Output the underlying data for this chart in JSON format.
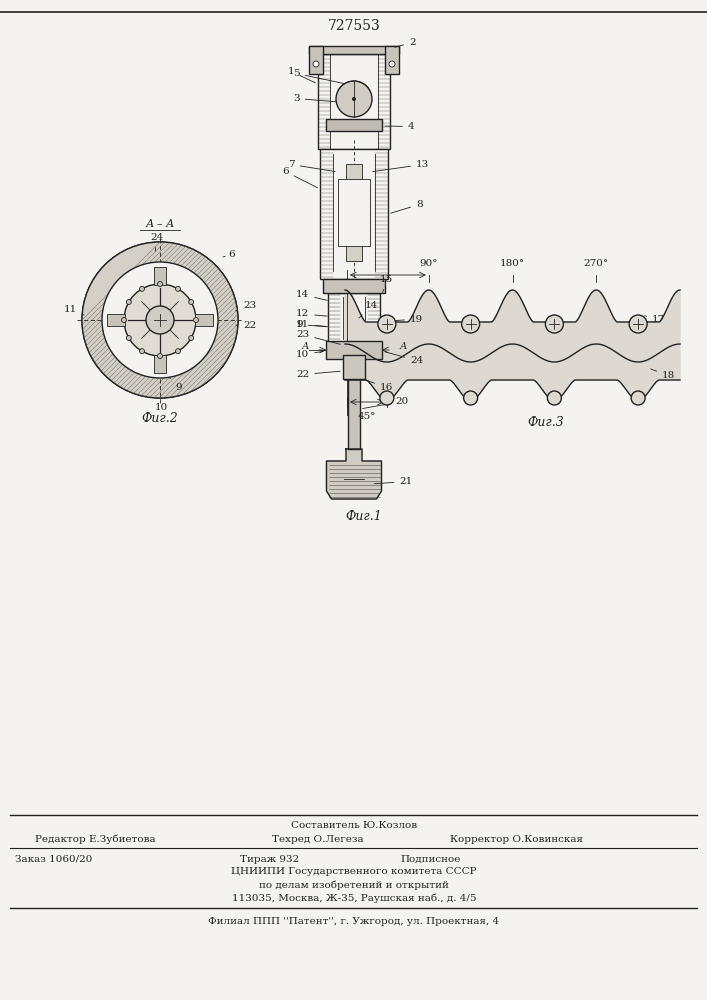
{
  "patent_number": "727553",
  "bg": "#f5f3ef",
  "lc": "#222222",
  "fig1_caption": "Фиг.1",
  "fig2_caption": "Фиг.2",
  "fig3_caption": "Фиг.3",
  "footer_composer": "Составитель Ю.Козлов",
  "footer_editor": "Редактор Е.Зубиетова",
  "footer_techred": "Техред О.Легеза",
  "footer_corrector": "Корректор О.Ковинская",
  "footer_order": "Заказ 1060/20",
  "footer_tirazh": "Тираж 932",
  "footer_podp": "Подписное",
  "footer_cniipи": "ЦНИИПИ Государственного комитета СССР",
  "footer_po": "по делам изобретений и открытий",
  "footer_addr": "113035, Москва, Ж-35, Раушская наб., д. 4/5",
  "footer_filial": "Филиал ППП ''Патент'', г. Ужгород, ул. Проектная, 4"
}
